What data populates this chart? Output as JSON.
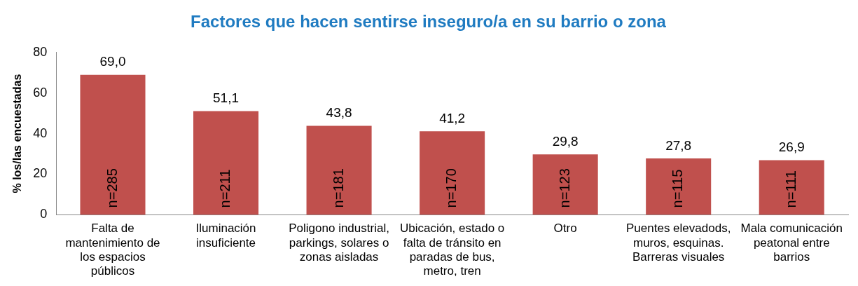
{
  "chart_data": {
    "type": "bar",
    "title": "Factores que hacen sentirse inseguro/a en su barrio o zona",
    "ylabel": "% los/las encuestadas",
    "categories": [
      "Falta de mantenimiento de los espacios públicos",
      "Iluminación insuficiente",
      "Poligono industrial, parkings, solares o zonas aisladas",
      "Ubicación, estado o falta de tránsito en paradas de bus, metro, tren",
      "Otro",
      "Puentes elevadods, muros, esquinas. Barreras visuales",
      "Mala comunicación peatonal entre barrios"
    ],
    "values": [
      69.0,
      51.1,
      43.8,
      41.2,
      29.8,
      27.8,
      26.9
    ],
    "value_labels": [
      "69,0",
      "51,1",
      "43,8",
      "41,2",
      "29,8",
      "27,8",
      "26,9"
    ],
    "annotations": [
      "n=285",
      "n=211",
      "n=181",
      "n=170",
      "n=123",
      "n=115",
      "n=111"
    ],
    "color": "#c0504d",
    "ylim": [
      0,
      80
    ],
    "yticks": [
      0,
      20,
      40,
      60,
      80
    ],
    "grid": false,
    "legend": false
  }
}
